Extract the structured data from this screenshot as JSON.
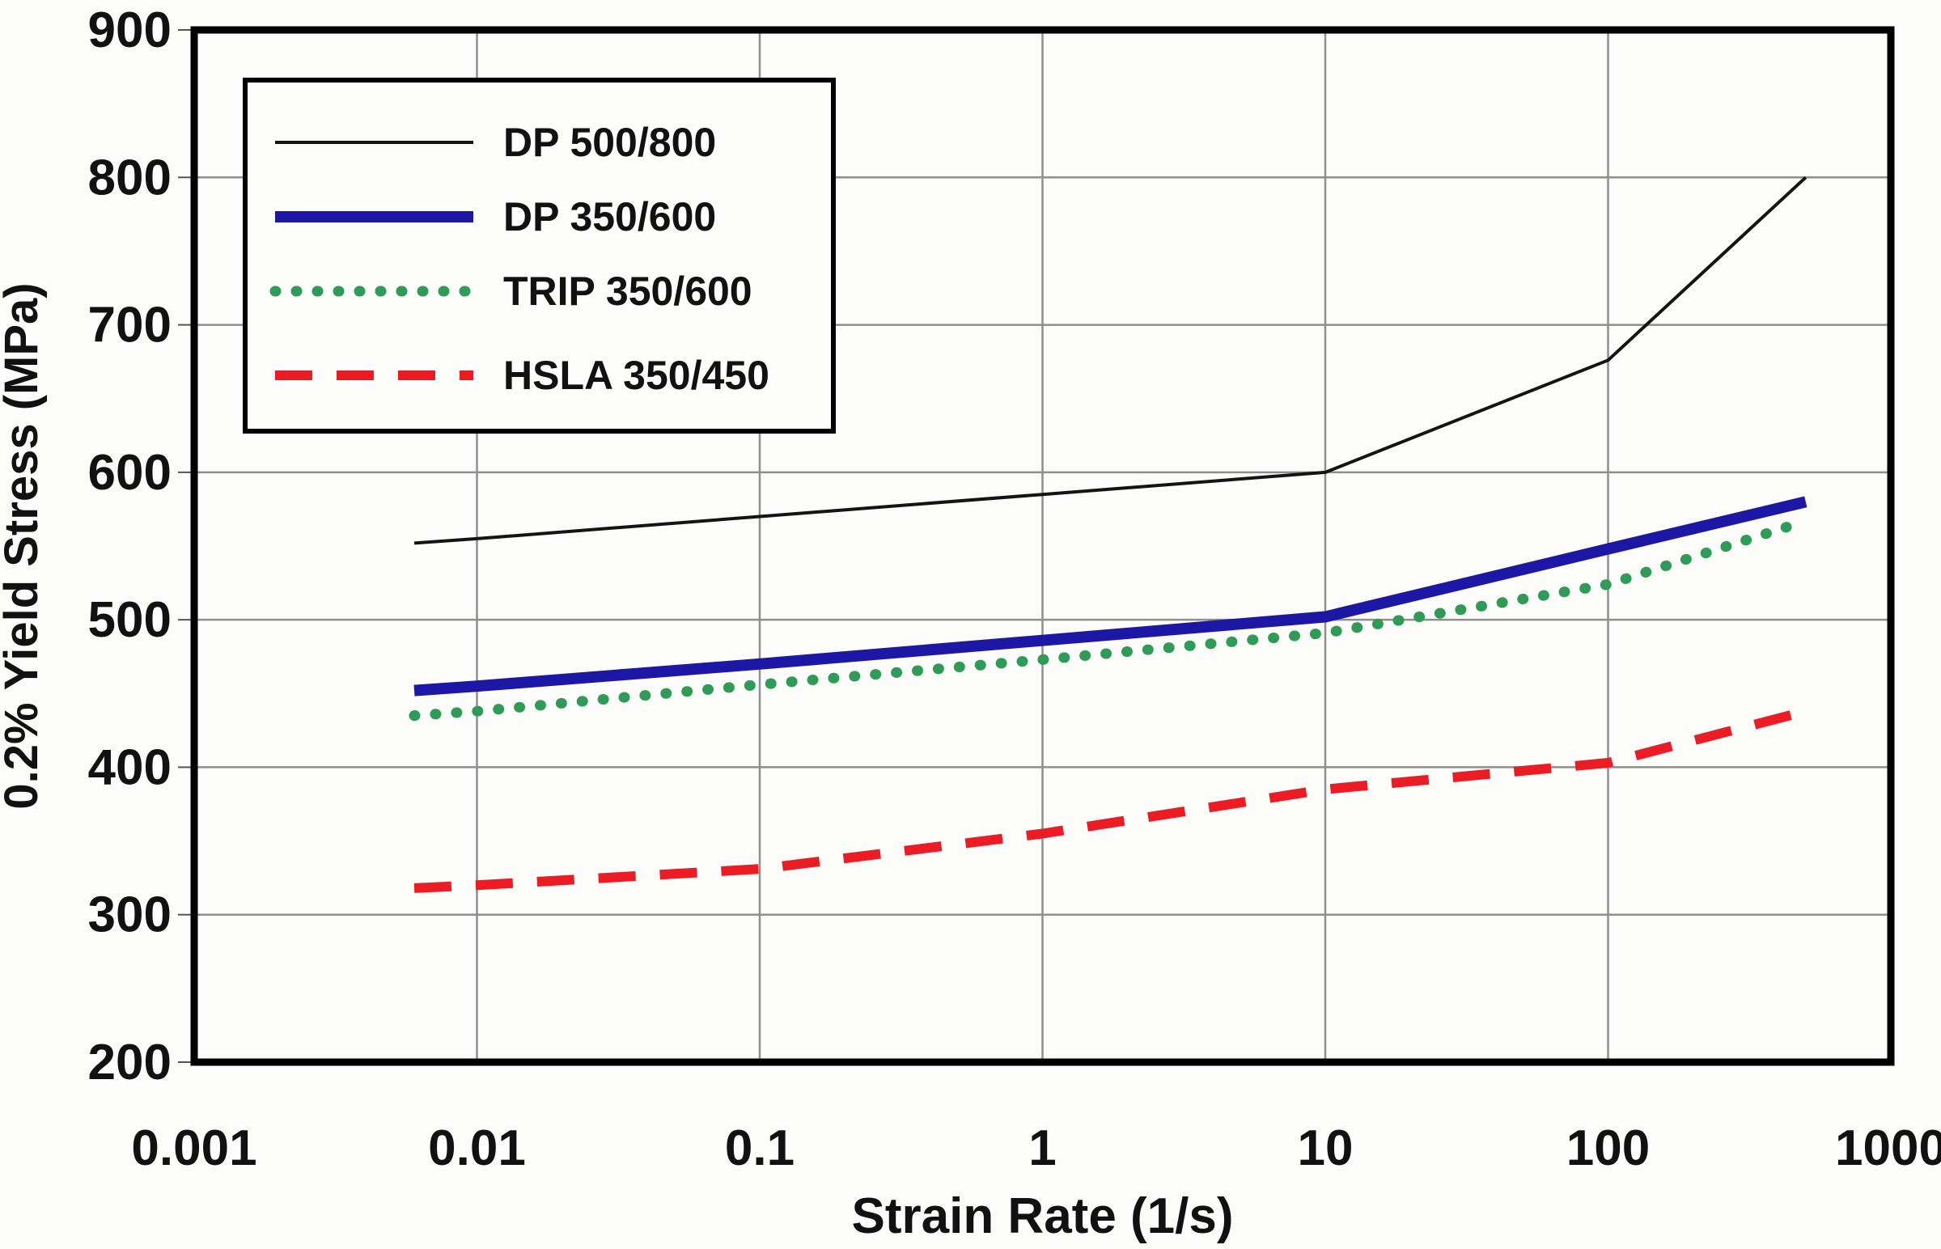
{
  "chart_data": {
    "type": "line",
    "title": "",
    "xlabel": "Strain Rate (1/s)",
    "ylabel": "0.2% Yield Stress (MPa)",
    "x_scale": "log",
    "xlim": [
      0.001,
      1000
    ],
    "ylim": [
      200,
      900
    ],
    "grid": true,
    "x_ticks": [
      0.001,
      0.01,
      0.1,
      1,
      10,
      100,
      1000
    ],
    "x_tick_labels": [
      "0.001",
      "0.01",
      "0.1",
      "1",
      "10",
      "100",
      "1000"
    ],
    "y_ticks": [
      900,
      800,
      700,
      600,
      500,
      400,
      300,
      200
    ],
    "y_tick_labels": [
      "900",
      "800",
      "700",
      "600",
      "500",
      "400",
      "300",
      "200"
    ],
    "legend_position": "top-left",
    "frame_color": "#000000",
    "grid_color": "#8f8f8f",
    "series": [
      {
        "name": "DP 500/800",
        "color": "#141414",
        "style": "solid-thin",
        "points": [
          [
            0.006,
            552
          ],
          [
            0.01,
            555
          ],
          [
            0.1,
            570
          ],
          [
            1,
            585
          ],
          [
            10,
            600
          ],
          [
            100,
            676
          ],
          [
            500,
            800
          ]
        ]
      },
      {
        "name": "DP 350/600",
        "color": "#1c17a5",
        "style": "solid-thick",
        "points": [
          [
            0.006,
            452
          ],
          [
            0.01,
            455
          ],
          [
            0.1,
            470
          ],
          [
            1,
            486
          ],
          [
            10,
            502
          ],
          [
            100,
            548
          ],
          [
            500,
            580
          ]
        ]
      },
      {
        "name": "TRIP 350/600",
        "color": "#2e9b57",
        "style": "dotted",
        "points": [
          [
            0.006,
            435
          ],
          [
            0.01,
            438
          ],
          [
            0.1,
            456
          ],
          [
            1,
            473
          ],
          [
            10,
            491
          ],
          [
            100,
            524
          ],
          [
            500,
            567
          ]
        ]
      },
      {
        "name": "HSLA 350/450",
        "color": "#ec1c24",
        "style": "dashed",
        "points": [
          [
            0.006,
            318
          ],
          [
            0.01,
            320
          ],
          [
            0.1,
            331
          ],
          [
            1,
            355
          ],
          [
            10,
            385
          ],
          [
            100,
            403
          ],
          [
            500,
            438
          ]
        ]
      }
    ]
  }
}
